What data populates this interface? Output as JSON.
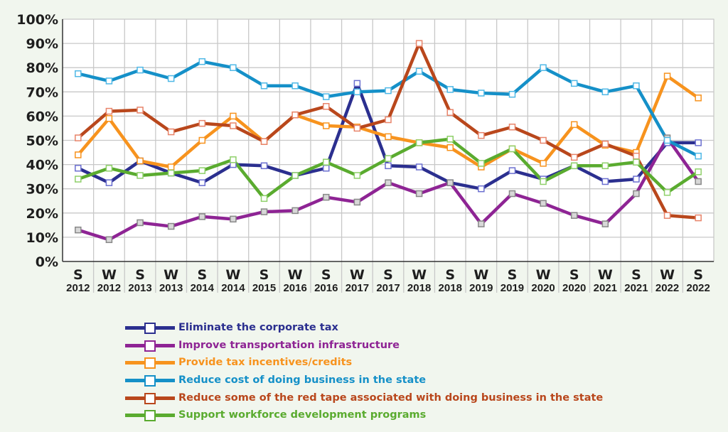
{
  "chart_data": {
    "type": "line",
    "categories": [
      {
        "season": "S",
        "year": "2012"
      },
      {
        "season": "W",
        "year": "2012"
      },
      {
        "season": "S",
        "year": "2013"
      },
      {
        "season": "W",
        "year": "2013"
      },
      {
        "season": "S",
        "year": "2014"
      },
      {
        "season": "W",
        "year": "2014"
      },
      {
        "season": "S",
        "year": "2015"
      },
      {
        "season": "W",
        "year": "2016"
      },
      {
        "season": "S",
        "year": "2016"
      },
      {
        "season": "W",
        "year": "2017"
      },
      {
        "season": "S",
        "year": "2017"
      },
      {
        "season": "W",
        "year": "2018"
      },
      {
        "season": "S",
        "year": "2018"
      },
      {
        "season": "W",
        "year": "2019"
      },
      {
        "season": "S",
        "year": "2019"
      },
      {
        "season": "W",
        "year": "2020"
      },
      {
        "season": "S",
        "year": "2020"
      },
      {
        "season": "W",
        "year": "2021"
      },
      {
        "season": "S",
        "year": "2021"
      },
      {
        "season": "W",
        "year": "2022"
      },
      {
        "season": "S",
        "year": "2022"
      }
    ],
    "ylim": [
      0,
      100
    ],
    "yticks": [
      "0%",
      "10%",
      "20%",
      "30%",
      "40%",
      "50%",
      "60%",
      "70%",
      "80%",
      "90%",
      "100%"
    ],
    "grid": true,
    "legend_position": "bottom",
    "series": [
      {
        "name": "Eliminate the corporate tax",
        "color": "#2b2f8f",
        "marker_color": "#6b6fd0",
        "values": [
          38.5,
          32.5,
          41.5,
          36.5,
          32.5,
          40,
          39.5,
          35.5,
          38.5,
          73.5,
          39.5,
          39,
          32.5,
          30,
          37.5,
          34,
          39.5,
          33,
          34,
          49,
          49
        ]
      },
      {
        "name": "Improve transportation infrastructure",
        "color": "#8e2494",
        "marker_color": "#888888",
        "values": [
          13,
          9,
          16,
          14.5,
          18.5,
          17.5,
          20.5,
          21,
          26.5,
          24.5,
          32.5,
          28,
          32.5,
          15.5,
          28,
          24,
          19,
          15.5,
          28,
          51,
          33
        ]
      },
      {
        "name": "Provide tax incentives/credits",
        "color": "#f7931e",
        "marker_color": "#f7931e",
        "values": [
          44,
          59,
          41.5,
          39,
          50,
          60,
          49.5,
          60.5,
          56,
          55.5,
          51.5,
          49,
          47,
          39,
          46.5,
          40.5,
          56.5,
          48,
          45,
          76.5,
          67.5
        ]
      },
      {
        "name": "Reduce cost of doing business in the state",
        "color": "#1590c8",
        "marker_color": "#4fb8e6",
        "values": [
          77.5,
          74.5,
          79,
          75.5,
          82.5,
          80,
          72.5,
          72.5,
          68,
          70,
          70.5,
          78.5,
          71,
          69.5,
          69,
          80,
          73.5,
          70,
          72.5,
          50,
          43.5
        ]
      },
      {
        "name": "Reduce some of the red tape associated with doing business in the state",
        "color": "#b9471c",
        "marker_color": "#e8846a",
        "values": [
          51,
          62,
          62.5,
          53.5,
          57,
          56,
          49.5,
          60.5,
          64,
          55,
          58.5,
          90,
          61.5,
          52,
          55.5,
          50,
          43,
          48.5,
          43.5,
          19,
          18
        ]
      },
      {
        "name": "Support workforce development programs",
        "color": "#5aab2f",
        "marker_color": "#8fd06a",
        "values": [
          34,
          38.5,
          35.5,
          36.5,
          37.5,
          42,
          26,
          35.5,
          41,
          35.5,
          42.5,
          49,
          50.5,
          40.5,
          46.5,
          33,
          39.5,
          39.5,
          41,
          28.5,
          37
        ]
      }
    ]
  }
}
